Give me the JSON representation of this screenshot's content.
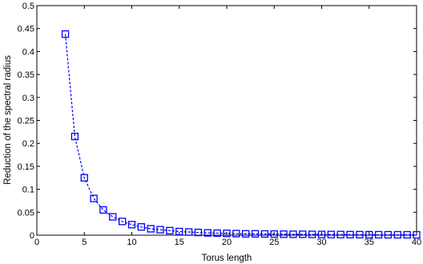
{
  "chart_data": {
    "type": "scatter",
    "title": "",
    "xlabel": "Torus length",
    "ylabel": "Reduction of the spectral radius",
    "xlim": [
      0,
      40
    ],
    "ylim": [
      0,
      0.5
    ],
    "xticks": [
      0,
      5,
      10,
      15,
      20,
      25,
      30,
      35,
      40
    ],
    "yticks": [
      0,
      0.05,
      0.1,
      0.15,
      0.2,
      0.25,
      0.3,
      0.35,
      0.4,
      0.45,
      0.5
    ],
    "xtick_labels": [
      "0",
      "5",
      "10",
      "15",
      "20",
      "25",
      "30",
      "35",
      "40"
    ],
    "ytick_labels": [
      "0",
      "0.05",
      "0.1",
      "0.15",
      "0.2",
      "0.25",
      "0.3",
      "0.35",
      "0.4",
      "0.45",
      "0.5"
    ],
    "grid": false,
    "legend": "none",
    "series": [
      {
        "marker": "square",
        "line_style": "dashed",
        "color": "#0000ff",
        "x": [
          3,
          4,
          5,
          6,
          7,
          8,
          9,
          10,
          11,
          12,
          13,
          14,
          15,
          16,
          17,
          18,
          19,
          20,
          21,
          22,
          23,
          24,
          25,
          26,
          27,
          28,
          29,
          30,
          31,
          32,
          33,
          34,
          35,
          36,
          37,
          38,
          39,
          40
        ],
        "y": [
          0.438,
          0.215,
          0.125,
          0.08,
          0.055,
          0.04,
          0.03,
          0.023,
          0.018,
          0.014,
          0.012,
          0.01,
          0.008,
          0.007,
          0.006,
          0.005,
          0.0045,
          0.004,
          0.0035,
          0.003,
          0.003,
          0.0027,
          0.0025,
          0.0022,
          0.002,
          0.002,
          0.0018,
          0.0016,
          0.0015,
          0.0014,
          0.0013,
          0.0012,
          0.0011,
          0.001,
          0.001,
          0.0009,
          0.0009,
          0.0008
        ]
      }
    ]
  }
}
